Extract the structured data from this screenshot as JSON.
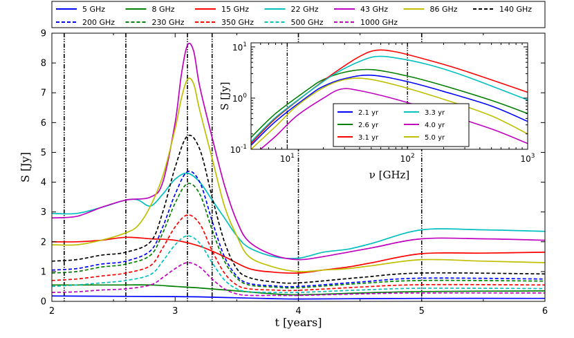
{
  "chart_data": [
    {
      "type": "line",
      "title": "",
      "xlabel": "t [years]",
      "ylabel": "S [Jy]",
      "xlim": [
        2,
        6
      ],
      "ylim": [
        0,
        9
      ],
      "xticks": [
        "2",
        "3",
        "4",
        "5",
        "6"
      ],
      "yticks": [
        "0",
        "1",
        "2",
        "3",
        "4",
        "5",
        "6",
        "7",
        "8",
        "9"
      ],
      "vertical_lines": [
        2.1,
        2.6,
        3.1,
        3.3,
        4.0,
        5.0
      ],
      "legend_position": "top, above plot, 7 columns",
      "series": [
        {
          "name": "5 GHz",
          "color": "#0000ff",
          "dash": "solid",
          "x": [
            2.0,
            2.5,
            3.0,
            3.2,
            3.5,
            3.8,
            4.0,
            4.5,
            5.0,
            6.0
          ],
          "y": [
            0.18,
            0.17,
            0.16,
            0.15,
            0.12,
            0.09,
            0.08,
            0.09,
            0.1,
            0.1
          ]
        },
        {
          "name": "8 GHz",
          "color": "#007f00",
          "dash": "solid",
          "x": [
            2.0,
            2.5,
            2.8,
            3.0,
            3.2,
            3.5,
            3.8,
            4.0,
            4.5,
            5.0,
            6.0
          ],
          "y": [
            0.55,
            0.55,
            0.55,
            0.5,
            0.45,
            0.35,
            0.25,
            0.22,
            0.28,
            0.33,
            0.35
          ]
        },
        {
          "name": "15 GHz",
          "color": "#ff0000",
          "dash": "solid",
          "x": [
            2.0,
            2.2,
            2.4,
            2.6,
            2.8,
            3.0,
            3.2,
            3.4,
            3.6,
            3.8,
            4.0,
            4.2,
            4.4,
            4.6,
            5.0,
            5.5,
            6.0
          ],
          "y": [
            2.0,
            2.0,
            2.05,
            2.15,
            2.1,
            2.05,
            1.85,
            1.5,
            1.1,
            0.98,
            0.95,
            1.05,
            1.15,
            1.3,
            1.6,
            1.62,
            1.65
          ]
        },
        {
          "name": "22 GHz",
          "color": "#00bfbf",
          "dash": "solid",
          "x": [
            2.0,
            2.2,
            2.4,
            2.6,
            2.7,
            2.8,
            2.9,
            3.0,
            3.1,
            3.2,
            3.3,
            3.4,
            3.5,
            3.6,
            3.8,
            4.0,
            4.2,
            4.4,
            4.6,
            5.0,
            5.5,
            6.0
          ],
          "y": [
            2.95,
            2.95,
            3.15,
            3.4,
            3.4,
            3.2,
            3.6,
            4.1,
            4.3,
            4.0,
            3.4,
            2.8,
            2.2,
            1.8,
            1.5,
            1.45,
            1.65,
            1.75,
            1.95,
            2.4,
            2.4,
            2.35
          ]
        },
        {
          "name": "43 GHz",
          "color": "#bf00bf",
          "dash": "solid",
          "x": [
            2.0,
            2.2,
            2.4,
            2.6,
            2.8,
            2.9,
            3.0,
            3.05,
            3.1,
            3.15,
            3.2,
            3.3,
            3.4,
            3.5,
            3.6,
            3.8,
            4.0,
            4.2,
            4.4,
            4.6,
            5.0,
            5.5,
            6.0
          ],
          "y": [
            2.8,
            2.85,
            3.15,
            3.4,
            3.5,
            4.0,
            6.0,
            7.6,
            8.6,
            8.4,
            7.2,
            5.5,
            3.9,
            2.7,
            2.0,
            1.55,
            1.4,
            1.5,
            1.65,
            1.8,
            2.1,
            2.1,
            2.05
          ]
        },
        {
          "name": "86 GHz",
          "color": "#bfbf00",
          "dash": "solid",
          "x": [
            2.0,
            2.2,
            2.4,
            2.6,
            2.7,
            2.8,
            2.9,
            3.0,
            3.05,
            3.1,
            3.15,
            3.2,
            3.3,
            3.4,
            3.5,
            3.6,
            3.8,
            4.0,
            4.2,
            4.4,
            4.6,
            5.0,
            5.5,
            6.0
          ],
          "y": [
            1.9,
            1.9,
            2.05,
            2.3,
            2.55,
            3.2,
            4.2,
            5.8,
            6.8,
            7.45,
            7.3,
            6.4,
            4.8,
            3.2,
            2.2,
            1.5,
            1.15,
            1.0,
            1.05,
            1.1,
            1.2,
            1.4,
            1.35,
            1.3
          ]
        },
        {
          "name": "140 GHz",
          "color": "#000000",
          "dash": "dashed",
          "x": [
            2.0,
            2.2,
            2.4,
            2.6,
            2.8,
            2.9,
            3.0,
            3.1,
            3.2,
            3.3,
            3.4,
            3.5,
            3.6,
            3.8,
            4.0,
            4.5,
            5.0,
            6.0
          ],
          "y": [
            1.35,
            1.4,
            1.55,
            1.65,
            2.0,
            3.0,
            4.5,
            5.55,
            5.1,
            3.5,
            2.0,
            1.1,
            0.8,
            0.65,
            0.62,
            0.8,
            0.95,
            0.92
          ]
        },
        {
          "name": "200 GHz",
          "color": "#0000ff",
          "dash": "dashed",
          "x": [
            2.0,
            2.2,
            2.4,
            2.6,
            2.8,
            2.9,
            3.0,
            3.1,
            3.2,
            3.3,
            3.4,
            3.5,
            3.6,
            3.8,
            4.0,
            4.5,
            5.0,
            6.0
          ],
          "y": [
            1.05,
            1.1,
            1.25,
            1.35,
            1.7,
            2.5,
            3.6,
            4.35,
            4.0,
            2.7,
            1.5,
            0.85,
            0.6,
            0.52,
            0.5,
            0.65,
            0.78,
            0.75
          ]
        },
        {
          "name": "230 GHz",
          "color": "#007f00",
          "dash": "dashed",
          "x": [
            2.0,
            2.2,
            2.4,
            2.6,
            2.8,
            2.9,
            3.0,
            3.1,
            3.2,
            3.3,
            3.4,
            3.5,
            3.6,
            3.8,
            4.0,
            4.5,
            5.0,
            6.0
          ],
          "y": [
            0.95,
            1.0,
            1.15,
            1.25,
            1.55,
            2.3,
            3.3,
            3.95,
            3.6,
            2.4,
            1.35,
            0.78,
            0.55,
            0.48,
            0.46,
            0.6,
            0.7,
            0.68
          ]
        },
        {
          "name": "350 GHz",
          "color": "#ff0000",
          "dash": "dashed",
          "x": [
            2.0,
            2.2,
            2.4,
            2.6,
            2.8,
            2.9,
            3.0,
            3.1,
            3.2,
            3.3,
            3.4,
            3.5,
            3.6,
            3.8,
            4.0,
            4.5,
            5.0,
            6.0
          ],
          "y": [
            0.7,
            0.75,
            0.85,
            0.95,
            1.2,
            1.8,
            2.5,
            2.9,
            2.6,
            1.7,
            0.95,
            0.55,
            0.42,
            0.38,
            0.37,
            0.48,
            0.56,
            0.55
          ]
        },
        {
          "name": "500 GHz",
          "color": "#00bfbf",
          "dash": "dashed",
          "x": [
            2.0,
            2.2,
            2.4,
            2.6,
            2.8,
            2.9,
            3.0,
            3.1,
            3.2,
            3.3,
            3.4,
            3.5,
            3.6,
            3.8,
            4.0,
            4.5,
            5.0,
            6.0
          ],
          "y": [
            0.5,
            0.55,
            0.62,
            0.7,
            0.9,
            1.35,
            1.9,
            2.2,
            1.95,
            1.3,
            0.72,
            0.42,
            0.32,
            0.3,
            0.3,
            0.38,
            0.44,
            0.43
          ]
        },
        {
          "name": "1000 GHz",
          "color": "#bf00bf",
          "dash": "dashed",
          "x": [
            2.0,
            2.2,
            2.4,
            2.6,
            2.8,
            2.9,
            3.0,
            3.1,
            3.2,
            3.3,
            3.4,
            3.5,
            3.6,
            3.8,
            4.0,
            4.5,
            5.0,
            6.0
          ],
          "y": [
            0.3,
            0.32,
            0.38,
            0.42,
            0.55,
            0.8,
            1.1,
            1.3,
            1.15,
            0.75,
            0.42,
            0.25,
            0.2,
            0.2,
            0.2,
            0.25,
            0.28,
            0.28
          ]
        }
      ]
    },
    {
      "type": "line",
      "title": "",
      "xlabel": "ν [GHz]",
      "ylabel": "S [Jy]",
      "xscale": "log",
      "yscale": "log",
      "xlim": [
        5,
        1000
      ],
      "ylim": [
        0.1,
        12
      ],
      "xticks": [
        "10^1",
        "10^2",
        "10^3"
      ],
      "yticks": [
        "10^-1",
        "10^0",
        "10^1"
      ],
      "vertical_lines": [
        10,
        100
      ],
      "legend_position": "inside, lower middle",
      "series": [
        {
          "name": "2.1 yr",
          "color": "#0000ff",
          "x": [
            5,
            8,
            15,
            20,
            30,
            50,
            100,
            200,
            500,
            1000
          ],
          "y": [
            0.12,
            0.35,
            1.1,
            1.7,
            2.4,
            2.8,
            2.1,
            1.35,
            0.7,
            0.35
          ]
        },
        {
          "name": "2.6 yr",
          "color": "#007f00",
          "x": [
            5,
            8,
            15,
            20,
            30,
            50,
            100,
            200,
            500,
            1000
          ],
          "y": [
            0.17,
            0.5,
            1.5,
            2.3,
            3.2,
            3.6,
            2.7,
            1.75,
            0.9,
            0.5
          ]
        },
        {
          "name": "3.1 yr",
          "color": "#ff0000",
          "x": [
            5,
            8,
            15,
            25,
            40,
            55,
            80,
            150,
            300,
            1000
          ],
          "y": [
            0.13,
            0.4,
            1.3,
            3.2,
            6.5,
            8.6,
            8.0,
            5.5,
            3.4,
            1.3
          ]
        },
        {
          "name": "3.3 yr",
          "color": "#00bfbf",
          "x": [
            5,
            8,
            15,
            25,
            40,
            55,
            80,
            150,
            300,
            1000
          ],
          "y": [
            0.14,
            0.42,
            1.3,
            3.0,
            5.2,
            6.5,
            6.1,
            4.5,
            2.7,
            0.92
          ]
        },
        {
          "name": "4.0 yr",
          "color": "#bf00bf",
          "x": [
            5,
            8,
            12,
            20,
            28,
            40,
            80,
            200,
            500,
            1000
          ],
          "y": [
            0.07,
            0.18,
            0.45,
            1.0,
            1.5,
            1.4,
            0.95,
            0.5,
            0.25,
            0.13
          ]
        },
        {
          "name": "5.0 yr",
          "color": "#bfbf00",
          "x": [
            5,
            8,
            12,
            20,
            30,
            45,
            80,
            200,
            500,
            1000
          ],
          "y": [
            0.1,
            0.28,
            0.7,
            1.6,
            2.3,
            2.4,
            1.8,
            0.95,
            0.45,
            0.2
          ]
        }
      ]
    }
  ]
}
